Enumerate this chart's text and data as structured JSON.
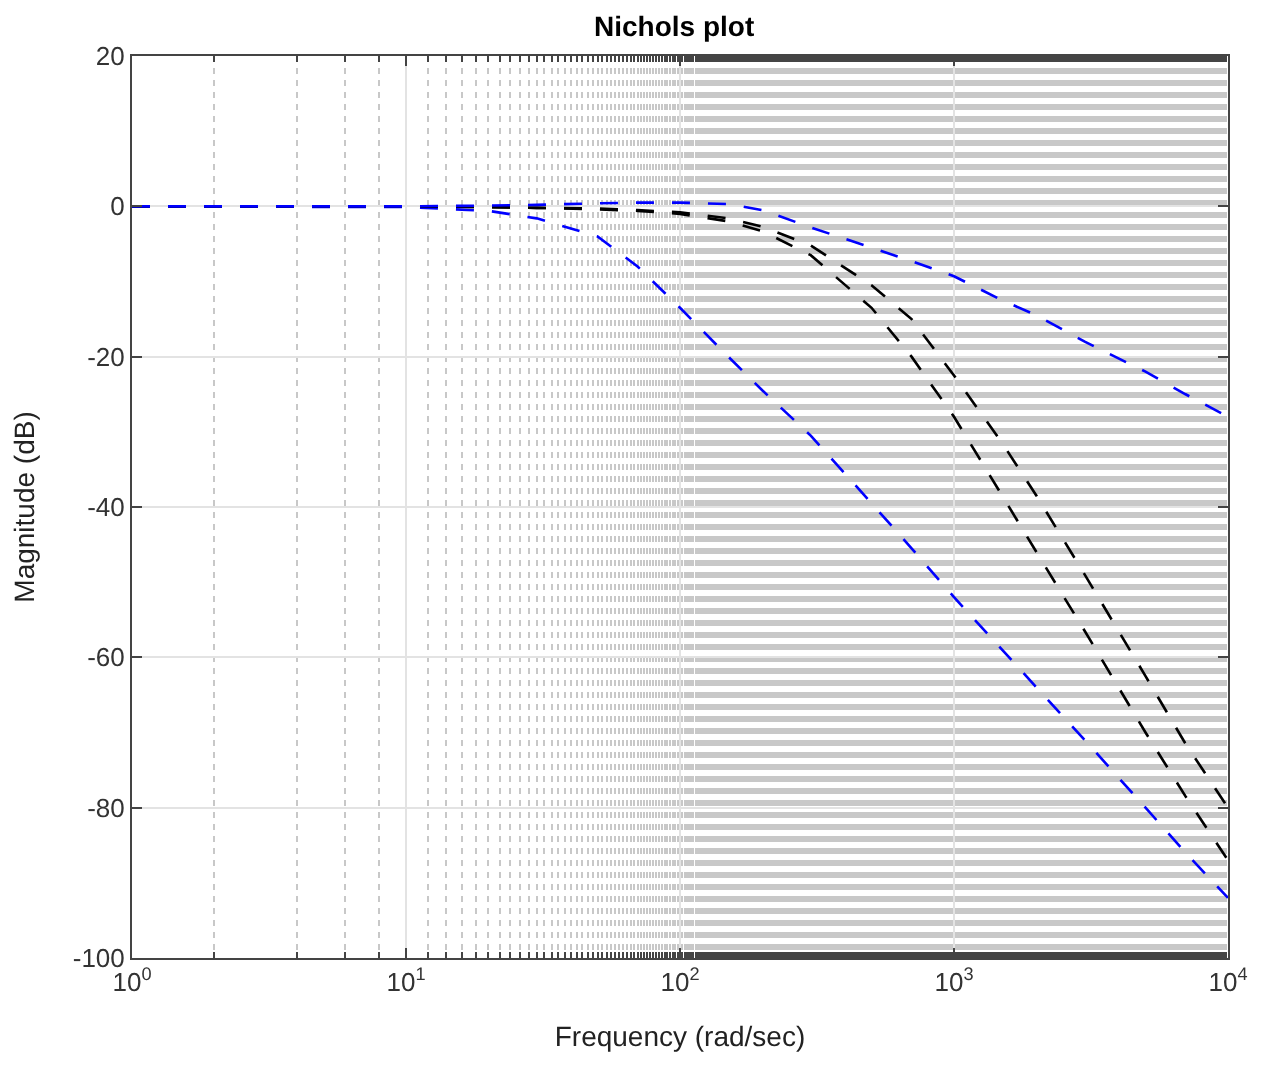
{
  "chart_data": {
    "type": "line",
    "title": "Nichols plot",
    "xlabel": "Frequency (rad/sec)",
    "ylabel": "Magnitude (dB)",
    "log": "x",
    "grid": true,
    "line_style": "dashed",
    "marker": "none",
    "x": [
      1,
      10,
      20,
      30,
      50,
      70,
      100,
      150,
      200,
      300,
      500,
      700,
      1000,
      1500,
      2000,
      3000,
      5000,
      7000,
      10000
    ],
    "xlim": [
      1,
      10000
    ],
    "xticks": [
      {
        "value": 1,
        "label": "10$^{0}$"
      },
      {
        "value": 10,
        "label": "10$^{1}$"
      },
      {
        "value": 100,
        "label": "10$^{2}$"
      },
      {
        "value": 1000,
        "label": "10$^{3}$"
      },
      {
        "value": 10000,
        "label": "10$^{4}$"
      }
    ],
    "ylim": [
      -100,
      20
    ],
    "yticks": [
      -100,
      -80,
      -60,
      -40,
      -20,
      0,
      20
    ],
    "series": [
      {
        "color": "#0000ff",
        "values": [
          0,
          -0.1,
          -0.6,
          -1.6,
          -4,
          -8,
          -13.5,
          -20,
          -24.5,
          -30.5,
          -39.5,
          -45.5,
          -52,
          -59,
          -64,
          -71,
          -80,
          -86,
          -92
        ]
      },
      {
        "color": "#000000",
        "values": [
          0,
          0,
          -0.1,
          -0.2,
          -0.4,
          -0.6,
          -1,
          -2,
          -3.3,
          -6.5,
          -13.5,
          -20,
          -28,
          -38.5,
          -46,
          -56.5,
          -70,
          -78.5,
          -87
        ]
      },
      {
        "color": "#000000",
        "values": [
          0,
          0,
          -0.1,
          -0.2,
          -0.3,
          -0.5,
          -0.8,
          -1.6,
          -2.7,
          -5.2,
          -10.5,
          -15,
          -22.5,
          -31.5,
          -38.5,
          -49,
          -62.5,
          -71.5,
          -80
        ]
      },
      {
        "color": "#0000ff",
        "values": [
          0,
          0,
          0.1,
          0.2,
          0.4,
          0.5,
          0.5,
          0.3,
          -0.5,
          -2.8,
          -5.5,
          -7.3,
          -9.3,
          -12.5,
          -14.5,
          -18,
          -22,
          -25,
          -28
        ]
      }
    ]
  }
}
